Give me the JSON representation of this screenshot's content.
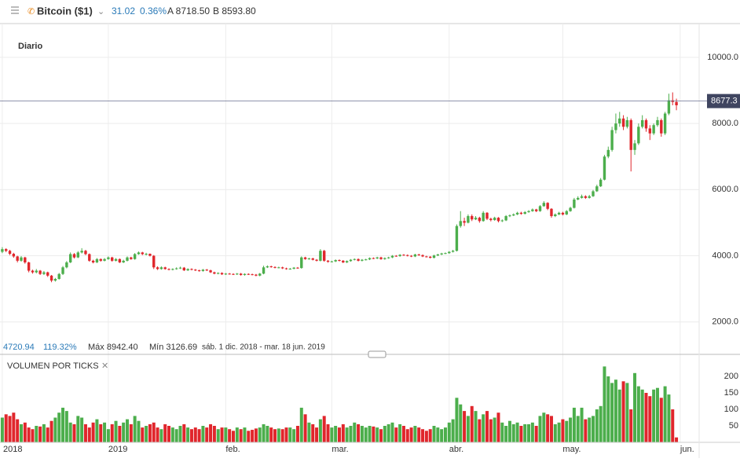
{
  "header": {
    "symbol": "Bitcoin ($1)",
    "change": "31.02",
    "change_pct": "0.36%",
    "ask": "A 8718.50",
    "bid": "B 8593.80"
  },
  "chart_data": {
    "type": "candlestick",
    "period": "Diario",
    "up_color": "#4cae4c",
    "down_color": "#e0262c",
    "ohlc": [
      [
        4120,
        4260,
        4080,
        4200
      ],
      [
        4200,
        4230,
        4110,
        4150
      ],
      [
        4150,
        4180,
        4020,
        4060
      ],
      [
        4060,
        4090,
        3940,
        3980
      ],
      [
        3980,
        4000,
        3800,
        3850
      ],
      [
        3850,
        3990,
        3820,
        3950
      ],
      [
        3950,
        3970,
        3760,
        3800
      ],
      [
        3800,
        3820,
        3500,
        3550
      ],
      [
        3550,
        3580,
        3460,
        3500
      ],
      [
        3500,
        3600,
        3470,
        3550
      ],
      [
        3550,
        3570,
        3420,
        3450
      ],
      [
        3450,
        3540,
        3420,
        3500
      ],
      [
        3500,
        3520,
        3360,
        3400
      ],
      [
        3400,
        3420,
        3200,
        3250
      ],
      [
        3250,
        3330,
        3220,
        3300
      ],
      [
        3300,
        3480,
        3280,
        3450
      ],
      [
        3450,
        3690,
        3420,
        3650
      ],
      [
        3650,
        3840,
        3620,
        3800
      ],
      [
        3800,
        4100,
        3780,
        4050
      ],
      [
        4050,
        4080,
        3920,
        3950
      ],
      [
        3950,
        4140,
        3930,
        4100
      ],
      [
        4100,
        4230,
        4070,
        4150
      ],
      [
        4150,
        4180,
        4020,
        4050
      ],
      [
        4050,
        4070,
        3820,
        3850
      ],
      [
        3850,
        3880,
        3770,
        3800
      ],
      [
        3800,
        3930,
        3780,
        3900
      ],
      [
        3900,
        3920,
        3820,
        3850
      ],
      [
        3850,
        3930,
        3830,
        3900
      ],
      [
        3900,
        3980,
        3880,
        3950
      ],
      [
        3950,
        3970,
        3820,
        3850
      ],
      [
        3850,
        3930,
        3830,
        3900
      ],
      [
        3900,
        3920,
        3780,
        3800
      ],
      [
        3800,
        3880,
        3780,
        3850
      ],
      [
        3850,
        3980,
        3830,
        3950
      ],
      [
        3950,
        3970,
        3880,
        3900
      ],
      [
        3900,
        4080,
        3880,
        4050
      ],
      [
        4050,
        4130,
        4030,
        4100
      ],
      [
        4100,
        4120,
        4020,
        4050
      ],
      [
        4050,
        4090,
        4010,
        4060
      ],
      [
        4060,
        4070,
        3980,
        4000
      ],
      [
        4000,
        4020,
        3600,
        3650
      ],
      [
        3650,
        3680,
        3570,
        3600
      ],
      [
        3600,
        3680,
        3580,
        3650
      ],
      [
        3650,
        3670,
        3580,
        3600
      ],
      [
        3600,
        3620,
        3560,
        3580
      ],
      [
        3580,
        3620,
        3560,
        3600
      ],
      [
        3600,
        3650,
        3580,
        3620
      ],
      [
        3620,
        3670,
        3600,
        3640
      ],
      [
        3640,
        3660,
        3540,
        3560
      ],
      [
        3560,
        3620,
        3540,
        3600
      ],
      [
        3600,
        3620,
        3560,
        3580
      ],
      [
        3580,
        3600,
        3540,
        3560
      ],
      [
        3560,
        3580,
        3520,
        3540
      ],
      [
        3540,
        3600,
        3520,
        3580
      ],
      [
        3580,
        3600,
        3540,
        3560
      ],
      [
        3560,
        3580,
        3480,
        3500
      ],
      [
        3500,
        3520,
        3440,
        3460
      ],
      [
        3460,
        3500,
        3440,
        3480
      ],
      [
        3480,
        3500,
        3420,
        3440
      ],
      [
        3440,
        3480,
        3420,
        3460
      ],
      [
        3460,
        3480,
        3430,
        3450
      ],
      [
        3450,
        3470,
        3420,
        3440
      ],
      [
        3440,
        3480,
        3420,
        3460
      ],
      [
        3460,
        3480,
        3400,
        3420
      ],
      [
        3420,
        3470,
        3400,
        3450
      ],
      [
        3450,
        3470,
        3420,
        3440
      ],
      [
        3440,
        3460,
        3410,
        3430
      ],
      [
        3430,
        3450,
        3380,
        3400
      ],
      [
        3400,
        3480,
        3380,
        3460
      ],
      [
        3460,
        3700,
        3440,
        3650
      ],
      [
        3650,
        3710,
        3630,
        3680
      ],
      [
        3680,
        3700,
        3640,
        3660
      ],
      [
        3660,
        3680,
        3620,
        3640
      ],
      [
        3640,
        3670,
        3620,
        3650
      ],
      [
        3650,
        3670,
        3600,
        3620
      ],
      [
        3620,
        3640,
        3580,
        3600
      ],
      [
        3600,
        3630,
        3580,
        3610
      ],
      [
        3610,
        3660,
        3590,
        3640
      ],
      [
        3640,
        3660,
        3610,
        3630
      ],
      [
        3630,
        3980,
        3610,
        3950
      ],
      [
        3950,
        3970,
        3880,
        3900
      ],
      [
        3900,
        3940,
        3880,
        3920
      ],
      [
        3920,
        3940,
        3860,
        3880
      ],
      [
        3880,
        3900,
        3830,
        3850
      ],
      [
        3850,
        4200,
        3830,
        4150
      ],
      [
        4150,
        4180,
        3820,
        3850
      ],
      [
        3850,
        3870,
        3790,
        3820
      ],
      [
        3820,
        3850,
        3800,
        3830
      ],
      [
        3830,
        3890,
        3810,
        3870
      ],
      [
        3870,
        3890,
        3830,
        3850
      ],
      [
        3850,
        3870,
        3780,
        3800
      ],
      [
        3800,
        3860,
        3780,
        3840
      ],
      [
        3840,
        3900,
        3820,
        3880
      ],
      [
        3880,
        3920,
        3860,
        3900
      ],
      [
        3900,
        3920,
        3830,
        3850
      ],
      [
        3850,
        3900,
        3830,
        3880
      ],
      [
        3880,
        3910,
        3860,
        3890
      ],
      [
        3890,
        3950,
        3870,
        3930
      ],
      [
        3930,
        3950,
        3900,
        3920
      ],
      [
        3920,
        3970,
        3900,
        3950
      ],
      [
        3950,
        3970,
        3880,
        3900
      ],
      [
        3900,
        3950,
        3880,
        3930
      ],
      [
        3930,
        3970,
        3910,
        3950
      ],
      [
        3950,
        4020,
        3930,
        4000
      ],
      [
        4000,
        4020,
        3970,
        3990
      ],
      [
        3990,
        4050,
        3970,
        4030
      ],
      [
        4030,
        4050,
        4000,
        4020
      ],
      [
        4020,
        4040,
        3980,
        4000
      ],
      [
        4000,
        4020,
        3960,
        3980
      ],
      [
        3980,
        4060,
        3960,
        4040
      ],
      [
        4040,
        4060,
        4000,
        4020
      ],
      [
        4020,
        4040,
        3960,
        3980
      ],
      [
        3980,
        4000,
        3950,
        3970
      ],
      [
        3970,
        3990,
        3920,
        3940
      ],
      [
        3940,
        4030,
        3920,
        4010
      ],
      [
        4010,
        4060,
        3990,
        4040
      ],
      [
        4040,
        4090,
        4020,
        4070
      ],
      [
        4070,
        4100,
        4050,
        4080
      ],
      [
        4080,
        4140,
        4060,
        4120
      ],
      [
        4120,
        4180,
        4100,
        4150
      ],
      [
        4150,
        4950,
        4130,
        4900
      ],
      [
        4900,
        5350,
        4850,
        5050
      ],
      [
        5050,
        5150,
        4900,
        5000
      ],
      [
        5000,
        5250,
        4980,
        5200
      ],
      [
        5200,
        5250,
        5050,
        5100
      ],
      [
        5100,
        5200,
        5080,
        5150
      ],
      [
        5150,
        5180,
        5000,
        5050
      ],
      [
        5050,
        5350,
        5030,
        5300
      ],
      [
        5300,
        5320,
        5080,
        5120
      ],
      [
        5120,
        5150,
        5040,
        5080
      ],
      [
        5080,
        5180,
        5060,
        5150
      ],
      [
        5150,
        5170,
        5010,
        5050
      ],
      [
        5050,
        5100,
        5020,
        5070
      ],
      [
        5070,
        5230,
        5050,
        5200
      ],
      [
        5200,
        5250,
        5170,
        5220
      ],
      [
        5220,
        5280,
        5200,
        5250
      ],
      [
        5250,
        5330,
        5230,
        5300
      ],
      [
        5300,
        5330,
        5240,
        5270
      ],
      [
        5270,
        5350,
        5250,
        5320
      ],
      [
        5320,
        5380,
        5300,
        5350
      ],
      [
        5350,
        5430,
        5330,
        5400
      ],
      [
        5400,
        5420,
        5320,
        5350
      ],
      [
        5350,
        5530,
        5330,
        5500
      ],
      [
        5500,
        5650,
        5480,
        5600
      ],
      [
        5600,
        5620,
        5380,
        5420
      ],
      [
        5420,
        5440,
        5150,
        5200
      ],
      [
        5200,
        5280,
        5170,
        5250
      ],
      [
        5250,
        5330,
        5230,
        5300
      ],
      [
        5300,
        5330,
        5220,
        5250
      ],
      [
        5250,
        5380,
        5230,
        5350
      ],
      [
        5350,
        5480,
        5330,
        5450
      ],
      [
        5450,
        5750,
        5430,
        5700
      ],
      [
        5700,
        5800,
        5680,
        5750
      ],
      [
        5750,
        5850,
        5730,
        5800
      ],
      [
        5800,
        5830,
        5720,
        5750
      ],
      [
        5750,
        5840,
        5730,
        5800
      ],
      [
        5800,
        5990,
        5780,
        5950
      ],
      [
        5950,
        6150,
        5930,
        6100
      ],
      [
        6100,
        6350,
        6080,
        6300
      ],
      [
        6300,
        7050,
        6280,
        7000
      ],
      [
        7000,
        7300,
        6950,
        7200
      ],
      [
        7200,
        7900,
        7150,
        7800
      ],
      [
        7800,
        8300,
        7700,
        8000
      ],
      [
        8000,
        8350,
        7900,
        8150
      ],
      [
        8150,
        8250,
        7800,
        7900
      ],
      [
        7900,
        8200,
        7850,
        8100
      ],
      [
        8100,
        8150,
        6550,
        7200
      ],
      [
        7200,
        7500,
        7050,
        7400
      ],
      [
        7400,
        8000,
        7350,
        7900
      ],
      [
        7900,
        8250,
        7850,
        8100
      ],
      [
        8100,
        8150,
        7750,
        7850
      ],
      [
        7850,
        7950,
        7500,
        7700
      ],
      [
        7700,
        8000,
        7650,
        7950
      ],
      [
        7950,
        8200,
        7900,
        8100
      ],
      [
        8100,
        8150,
        7600,
        7700
      ],
      [
        7700,
        8350,
        7650,
        8300
      ],
      [
        8300,
        8900,
        8250,
        8700
      ],
      [
        8700,
        8940,
        8550,
        8650
      ],
      [
        8650,
        8750,
        8400,
        8550
      ]
    ],
    "xlim": [
      -0.6,
      184
    ],
    "xticks": [
      {
        "value": 0,
        "label": "2018"
      },
      {
        "value": 28,
        "label": "2019"
      },
      {
        "value": 59,
        "label": "feb."
      },
      {
        "value": 87,
        "label": "mar."
      },
      {
        "value": 118,
        "label": "abr."
      },
      {
        "value": 148,
        "label": "may."
      },
      {
        "value": 179,
        "label": "jun."
      }
    ],
    "ylim": [
      1020,
      11020
    ],
    "yticks": [
      {
        "value": 2000,
        "label": "2000.0"
      },
      {
        "value": 4000,
        "label": "4000.0"
      },
      {
        "value": 6000,
        "label": "6000.0"
      },
      {
        "value": 8000,
        "label": "8000.0"
      },
      {
        "value": 10000,
        "label": "10000.0"
      }
    ],
    "grid": true,
    "last_price": 8677.3,
    "stats": {
      "change": "4720.94",
      "change_pct": "119.32%",
      "max": "Máx 8942.40",
      "min": "Mín 3126.69",
      "range": "sáb. 1 dic. 2018 - mar. 18 jun. 2019"
    },
    "volume": {
      "title": "VOLUMEN POR TICKS",
      "ylim": [
        0,
        250
      ],
      "yticks": [
        50,
        100,
        150,
        200
      ],
      "values": [
        75,
        85,
        80,
        90,
        70,
        55,
        60,
        45,
        40,
        50,
        48,
        55,
        45,
        65,
        75,
        90,
        105,
        95,
        60,
        55,
        80,
        75,
        55,
        45,
        60,
        70,
        55,
        60,
        40,
        55,
        65,
        50,
        60,
        70,
        55,
        80,
        65,
        45,
        50,
        55,
        60,
        45,
        40,
        55,
        50,
        45,
        40,
        50,
        55,
        45,
        40,
        45,
        40,
        50,
        45,
        55,
        50,
        40,
        45,
        45,
        40,
        35,
        45,
        40,
        45,
        35,
        38,
        42,
        45,
        55,
        50,
        45,
        40,
        42,
        40,
        45,
        45,
        40,
        50,
        105,
        85,
        60,
        55,
        45,
        70,
        80,
        55,
        45,
        50,
        45,
        55,
        45,
        50,
        60,
        55,
        50,
        45,
        50,
        48,
        45,
        40,
        50,
        55,
        60,
        45,
        55,
        50,
        40,
        45,
        50,
        45,
        40,
        35,
        40,
        50,
        45,
        40,
        45,
        60,
        70,
        135,
        115,
        95,
        80,
        110,
        95,
        70,
        85,
        95,
        70,
        75,
        90,
        60,
        50,
        65,
        55,
        60,
        50,
        55,
        55,
        60,
        50,
        80,
        90,
        85,
        80,
        55,
        60,
        70,
        65,
        75,
        105,
        80,
        105,
        70,
        75,
        80,
        100,
        110,
        230,
        200,
        180,
        190,
        160,
        185,
        180,
        100,
        210,
        170,
        160,
        150,
        140,
        160,
        165,
        135,
        170,
        145,
        100,
        15
      ]
    }
  }
}
